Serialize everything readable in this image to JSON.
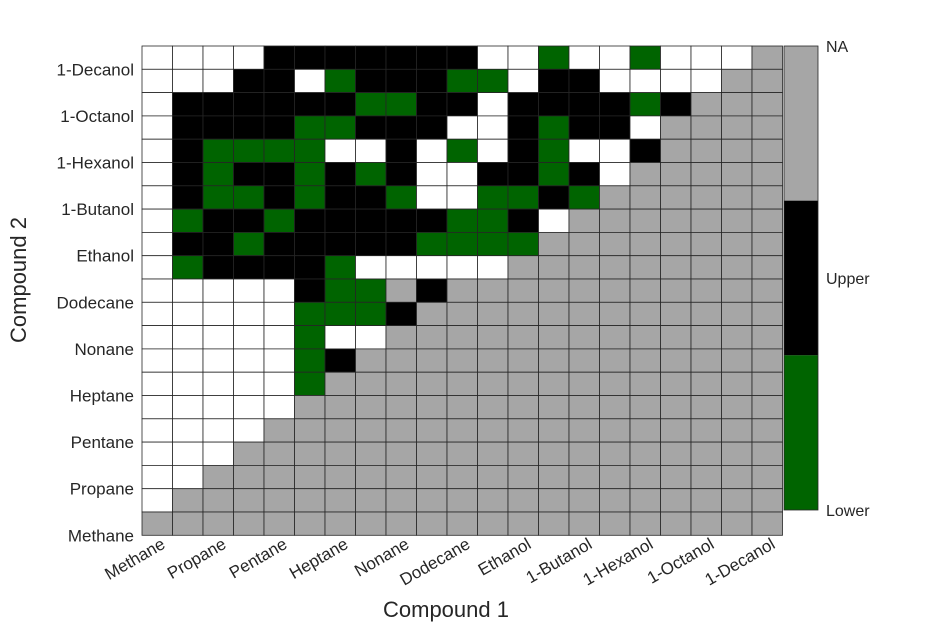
{
  "chart_data": {
    "type": "heatmap",
    "xlabel": "Compound 1",
    "ylabel": "Compound 2",
    "x_tick_labels": [
      "Methane",
      "Propane",
      "Pentane",
      "Heptane",
      "Nonane",
      "Dodecane",
      "Ethanol",
      "1-Butanol",
      "1-Hexanol",
      "1-Octanol",
      "1-Decanol"
    ],
    "y_tick_labels": [
      "Methane",
      "Propane",
      "Pentane",
      "Heptane",
      "Nonane",
      "Dodecane",
      "Ethanol",
      "1-Butanol",
      "1-Hexanol",
      "1-Octanol",
      "1-Decanol"
    ],
    "grid_size": 21,
    "value_codes": {
      "0": "empty",
      "1": "Lower",
      "2": "Upper",
      "3": "NA"
    },
    "colorbar": {
      "labels": [
        "NA",
        "Upper",
        "Lower"
      ],
      "colors": {
        "NA": "#a6a6a6",
        "Upper": "#000000",
        "Lower": "#006400"
      }
    },
    "cell_colors": {
      "0": "#ffffff",
      "1": "#006400",
      "2": "#000000",
      "3": "#a6a6a6"
    },
    "rows_top_to_bottom": [
      "000022222220010010003",
      "000220122211022000033",
      "022222211220222212333",
      "022221122200212203333",
      "021111002010210023333",
      "021221212002212033333",
      "021121221001121333333",
      "012212222211203333333",
      "022122222111133333333",
      "012222100000333333333",
      "000002113233333333333",
      "000001112333333333333",
      "000001003333333333333",
      "000001233333333333333",
      "000001333333333333333",
      "000003333333333333333",
      "000033333333333333333",
      "000333333333333333333",
      "003333333333333333333",
      "033333333333333333333",
      "333333333333333333333"
    ]
  }
}
